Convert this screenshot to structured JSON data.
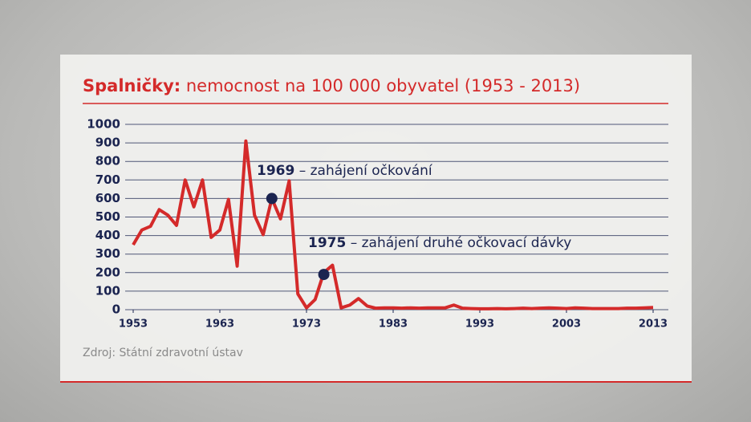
{
  "chart_data": {
    "type": "line",
    "title": [
      "Spalničky:",
      "nemocnost na 100 000 obyvatel (1953 - 2013)"
    ],
    "x": [
      1953,
      1954,
      1955,
      1956,
      1957,
      1958,
      1959,
      1960,
      1961,
      1962,
      1963,
      1964,
      1965,
      1966,
      1967,
      1968,
      1969,
      1970,
      1971,
      1972,
      1973,
      1974,
      1975,
      1976,
      1977,
      1978,
      1979,
      1980,
      1981,
      1982,
      1983,
      1984,
      1985,
      1986,
      1987,
      1988,
      1989,
      1990,
      1991,
      1992,
      1993,
      1994,
      1995,
      1996,
      1997,
      1998,
      1999,
      2000,
      2001,
      2002,
      2003,
      2004,
      2005,
      2006,
      2007,
      2008,
      2009,
      2010,
      2011,
      2012,
      2013
    ],
    "series": [
      {
        "name": "nemocnost",
        "color": "#d42a2a",
        "values": [
          350,
          430,
          450,
          540,
          510,
          455,
          700,
          555,
          700,
          390,
          430,
          595,
          235,
          910,
          510,
          405,
          600,
          490,
          695,
          85,
          10,
          55,
          200,
          240,
          10,
          25,
          60,
          20,
          8,
          10,
          10,
          8,
          10,
          8,
          10,
          10,
          10,
          25,
          8,
          6,
          5,
          5,
          6,
          5,
          6,
          8,
          6,
          8,
          10,
          8,
          6,
          10,
          8,
          6,
          6,
          6,
          6,
          8,
          8,
          10,
          12
        ]
      }
    ],
    "xlim": [
      1953,
      2013
    ],
    "ylim": [
      0,
      1000
    ],
    "xticks": [
      1953,
      1963,
      1973,
      1983,
      1993,
      2003,
      2013
    ],
    "yticks": [
      0,
      100,
      200,
      300,
      400,
      500,
      600,
      700,
      800,
      900,
      1000
    ],
    "grid": true,
    "annotations": [
      {
        "x": 1969,
        "y": 600,
        "label": "1969",
        "text": "– zahájení očkování"
      },
      {
        "x": 1975,
        "y": 190,
        "label": "1975",
        "text": "– zahájení druhé očkovací dávky"
      }
    ],
    "source": "Zdroj: Státní zdravotní ústav"
  }
}
